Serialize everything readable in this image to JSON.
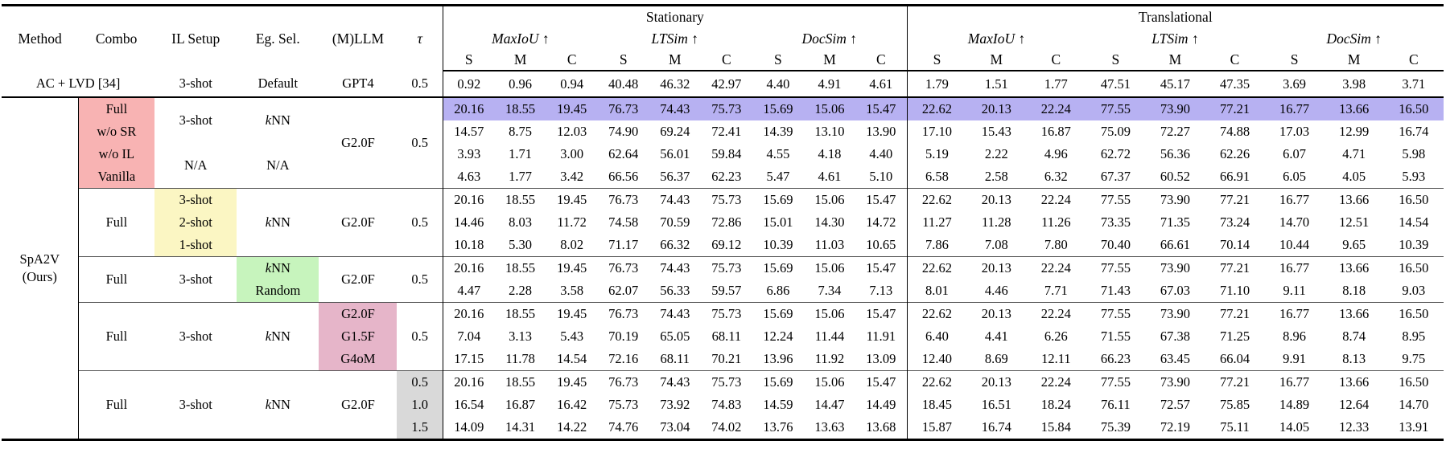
{
  "colors": {
    "pink": "#f8b3b3",
    "purple": "#b7b1f2",
    "yellow": "#fbf6c3",
    "green": "#c7f4bd",
    "rose": "#e6b5c9",
    "gray": "#d9d9d9"
  },
  "header": {
    "cols": [
      "Method",
      "Combo",
      "IL Setup",
      "Eg. Sel.",
      "(M)LLM",
      "τ"
    ],
    "groups": [
      "Stationary",
      "Translational"
    ],
    "metrics": [
      "MaxIoU ↑",
      "LTSim ↑",
      "DocSim ↑"
    ],
    "submetrics": [
      "S",
      "M",
      "C"
    ]
  },
  "rows": [
    {
      "cls": "baseline",
      "cells": [
        {
          "t": "AC + LVD [34]",
          "colspan": 2,
          "name": "method-cell"
        },
        {
          "t": "3-shot",
          "name": "il-setup-cell"
        },
        {
          "t": "Default",
          "name": "eg-sel-cell"
        },
        {
          "t": "GPT4",
          "name": "mllm-cell"
        },
        {
          "t": "0.5",
          "name": "tau-cell"
        }
      ],
      "vals": [
        "0.92",
        "0.96",
        "0.94",
        "40.48",
        "46.32",
        "42.97",
        "4.40",
        "4.91",
        "4.61",
        "1.79",
        "1.51",
        "1.77",
        "47.51",
        "45.17",
        "47.35",
        "3.69",
        "3.98",
        "3.71"
      ]
    },
    {
      "highlight": true,
      "cells": [
        {
          "t": "SpA2V\n(Ours)",
          "rowspan": 15,
          "cls": "method-span",
          "name": "method-cell"
        },
        {
          "t": "Full",
          "cls": "pink",
          "name": "combo-cell"
        },
        {
          "t": "3-shot",
          "rowspan": 2,
          "name": "il-setup-cell"
        },
        {
          "t": "kNN",
          "rowspan": 2,
          "cls": "knn",
          "name": "eg-sel-cell"
        },
        {
          "t": "G2.0F",
          "rowspan": 4,
          "name": "mllm-cell"
        },
        {
          "t": "0.5",
          "rowspan": 4,
          "name": "tau-cell"
        }
      ],
      "vals": [
        "20.16",
        "18.55",
        "19.45",
        "76.73",
        "74.43",
        "75.73",
        "15.69",
        "15.06",
        "15.47",
        "22.62",
        "20.13",
        "22.24",
        "77.55",
        "73.90",
        "77.21",
        "16.77",
        "13.66",
        "16.50"
      ]
    },
    {
      "cells": [
        {
          "t": "w/o SR",
          "cls": "pink",
          "name": "combo-cell"
        }
      ],
      "vals": [
        "14.57",
        "8.75",
        "12.03",
        "74.90",
        "69.24",
        "72.41",
        "14.39",
        "13.10",
        "13.90",
        "17.10",
        "15.43",
        "16.87",
        "75.09",
        "72.27",
        "74.88",
        "17.03",
        "12.99",
        "16.74"
      ]
    },
    {
      "cells": [
        {
          "t": "w/o IL",
          "cls": "pink",
          "name": "combo-cell"
        },
        {
          "t": "N/A",
          "rowspan": 2,
          "name": "il-setup-cell"
        },
        {
          "t": "N/A",
          "rowspan": 2,
          "name": "eg-sel-cell"
        }
      ],
      "vals": [
        "3.93",
        "1.71",
        "3.00",
        "62.64",
        "56.01",
        "59.84",
        "4.55",
        "4.18",
        "4.40",
        "5.19",
        "2.22",
        "4.96",
        "62.72",
        "56.36",
        "62.26",
        "6.07",
        "4.71",
        "5.98"
      ]
    },
    {
      "cells": [
        {
          "t": "Vanilla",
          "cls": "pink",
          "name": "combo-cell"
        }
      ],
      "vals": [
        "4.63",
        "1.77",
        "3.42",
        "66.56",
        "56.37",
        "62.23",
        "5.47",
        "4.61",
        "5.10",
        "6.58",
        "2.58",
        "6.32",
        "67.37",
        "60.52",
        "66.91",
        "6.05",
        "4.05",
        "5.93"
      ]
    },
    {
      "cls": "block-start",
      "cells": [
        {
          "t": "Full",
          "rowspan": 3,
          "name": "combo-cell"
        },
        {
          "t": "3-shot",
          "cls": "yellow",
          "name": "il-setup-cell"
        },
        {
          "t": "kNN",
          "rowspan": 3,
          "cls": "knn",
          "name": "eg-sel-cell"
        },
        {
          "t": "G2.0F",
          "rowspan": 3,
          "name": "mllm-cell"
        },
        {
          "t": "0.5",
          "rowspan": 3,
          "name": "tau-cell"
        }
      ],
      "vals": [
        "20.16",
        "18.55",
        "19.45",
        "76.73",
        "74.43",
        "75.73",
        "15.69",
        "15.06",
        "15.47",
        "22.62",
        "20.13",
        "22.24",
        "77.55",
        "73.90",
        "77.21",
        "16.77",
        "13.66",
        "16.50"
      ]
    },
    {
      "cells": [
        {
          "t": "2-shot",
          "cls": "yellow",
          "name": "il-setup-cell"
        }
      ],
      "vals": [
        "14.46",
        "8.03",
        "11.72",
        "74.58",
        "70.59",
        "72.86",
        "15.01",
        "14.30",
        "14.72",
        "11.27",
        "11.28",
        "11.26",
        "73.35",
        "71.35",
        "73.24",
        "14.70",
        "12.51",
        "14.54"
      ]
    },
    {
      "cells": [
        {
          "t": "1-shot",
          "cls": "yellow",
          "name": "il-setup-cell"
        }
      ],
      "vals": [
        "10.18",
        "5.30",
        "8.02",
        "71.17",
        "66.32",
        "69.12",
        "10.39",
        "11.03",
        "10.65",
        "7.86",
        "7.08",
        "7.80",
        "70.40",
        "66.61",
        "70.14",
        "10.44",
        "9.65",
        "10.39"
      ]
    },
    {
      "cls": "block-start",
      "cells": [
        {
          "t": "Full",
          "rowspan": 2,
          "name": "combo-cell"
        },
        {
          "t": "3-shot",
          "rowspan": 2,
          "name": "il-setup-cell"
        },
        {
          "t": "kNN",
          "cls": "green knn",
          "name": "eg-sel-cell"
        },
        {
          "t": "G2.0F",
          "rowspan": 2,
          "name": "mllm-cell"
        },
        {
          "t": "0.5",
          "rowspan": 2,
          "name": "tau-cell"
        }
      ],
      "vals": [
        "20.16",
        "18.55",
        "19.45",
        "76.73",
        "74.43",
        "75.73",
        "15.69",
        "15.06",
        "15.47",
        "22.62",
        "20.13",
        "22.24",
        "77.55",
        "73.90",
        "77.21",
        "16.77",
        "13.66",
        "16.50"
      ]
    },
    {
      "cells": [
        {
          "t": "Random",
          "cls": "green",
          "name": "eg-sel-cell"
        }
      ],
      "vals": [
        "4.47",
        "2.28",
        "3.58",
        "62.07",
        "56.33",
        "59.57",
        "6.86",
        "7.34",
        "7.13",
        "8.01",
        "4.46",
        "7.71",
        "71.43",
        "67.03",
        "71.10",
        "9.11",
        "8.18",
        "9.03"
      ]
    },
    {
      "cls": "block-start",
      "cells": [
        {
          "t": "Full",
          "rowspan": 3,
          "name": "combo-cell"
        },
        {
          "t": "3-shot",
          "rowspan": 3,
          "name": "il-setup-cell"
        },
        {
          "t": "kNN",
          "rowspan": 3,
          "cls": "knn",
          "name": "eg-sel-cell"
        },
        {
          "t": "G2.0F",
          "cls": "rose",
          "name": "mllm-cell"
        },
        {
          "t": "0.5",
          "rowspan": 3,
          "name": "tau-cell"
        }
      ],
      "vals": [
        "20.16",
        "18.55",
        "19.45",
        "76.73",
        "74.43",
        "75.73",
        "15.69",
        "15.06",
        "15.47",
        "22.62",
        "20.13",
        "22.24",
        "77.55",
        "73.90",
        "77.21",
        "16.77",
        "13.66",
        "16.50"
      ]
    },
    {
      "cells": [
        {
          "t": "G1.5F",
          "cls": "rose",
          "name": "mllm-cell"
        }
      ],
      "vals": [
        "7.04",
        "3.13",
        "5.43",
        "70.19",
        "65.05",
        "68.11",
        "12.24",
        "11.44",
        "11.91",
        "6.40",
        "4.41",
        "6.26",
        "71.55",
        "67.38",
        "71.25",
        "8.96",
        "8.74",
        "8.95"
      ]
    },
    {
      "cells": [
        {
          "t": "G4oM",
          "cls": "rose",
          "name": "mllm-cell"
        }
      ],
      "vals": [
        "17.15",
        "11.78",
        "14.54",
        "72.16",
        "68.11",
        "70.21",
        "13.96",
        "11.92",
        "13.09",
        "12.40",
        "8.69",
        "12.11",
        "66.23",
        "63.45",
        "66.04",
        "9.91",
        "8.13",
        "9.75"
      ]
    },
    {
      "cls": "block-start",
      "cells": [
        {
          "t": "Full",
          "rowspan": 3,
          "name": "combo-cell"
        },
        {
          "t": "3-shot",
          "rowspan": 3,
          "name": "il-setup-cell"
        },
        {
          "t": "kNN",
          "rowspan": 3,
          "cls": "knn",
          "name": "eg-sel-cell"
        },
        {
          "t": "G2.0F",
          "rowspan": 3,
          "name": "mllm-cell"
        },
        {
          "t": "0.5",
          "cls": "gray",
          "name": "tau-cell"
        }
      ],
      "vals": [
        "20.16",
        "18.55",
        "19.45",
        "76.73",
        "74.43",
        "75.73",
        "15.69",
        "15.06",
        "15.47",
        "22.62",
        "20.13",
        "22.24",
        "77.55",
        "73.90",
        "77.21",
        "16.77",
        "13.66",
        "16.50"
      ]
    },
    {
      "cells": [
        {
          "t": "1.0",
          "cls": "gray",
          "name": "tau-cell"
        }
      ],
      "vals": [
        "16.54",
        "16.87",
        "16.42",
        "75.73",
        "73.92",
        "74.83",
        "14.59",
        "14.47",
        "14.49",
        "18.45",
        "16.51",
        "18.24",
        "76.11",
        "72.57",
        "75.85",
        "14.89",
        "12.64",
        "14.70"
      ]
    },
    {
      "cells": [
        {
          "t": "1.5",
          "cls": "gray",
          "name": "tau-cell"
        }
      ],
      "vals": [
        "14.09",
        "14.31",
        "14.22",
        "74.76",
        "73.04",
        "74.02",
        "13.76",
        "13.63",
        "13.68",
        "15.87",
        "16.74",
        "15.84",
        "75.39",
        "72.19",
        "75.11",
        "14.05",
        "12.33",
        "13.91"
      ]
    }
  ]
}
